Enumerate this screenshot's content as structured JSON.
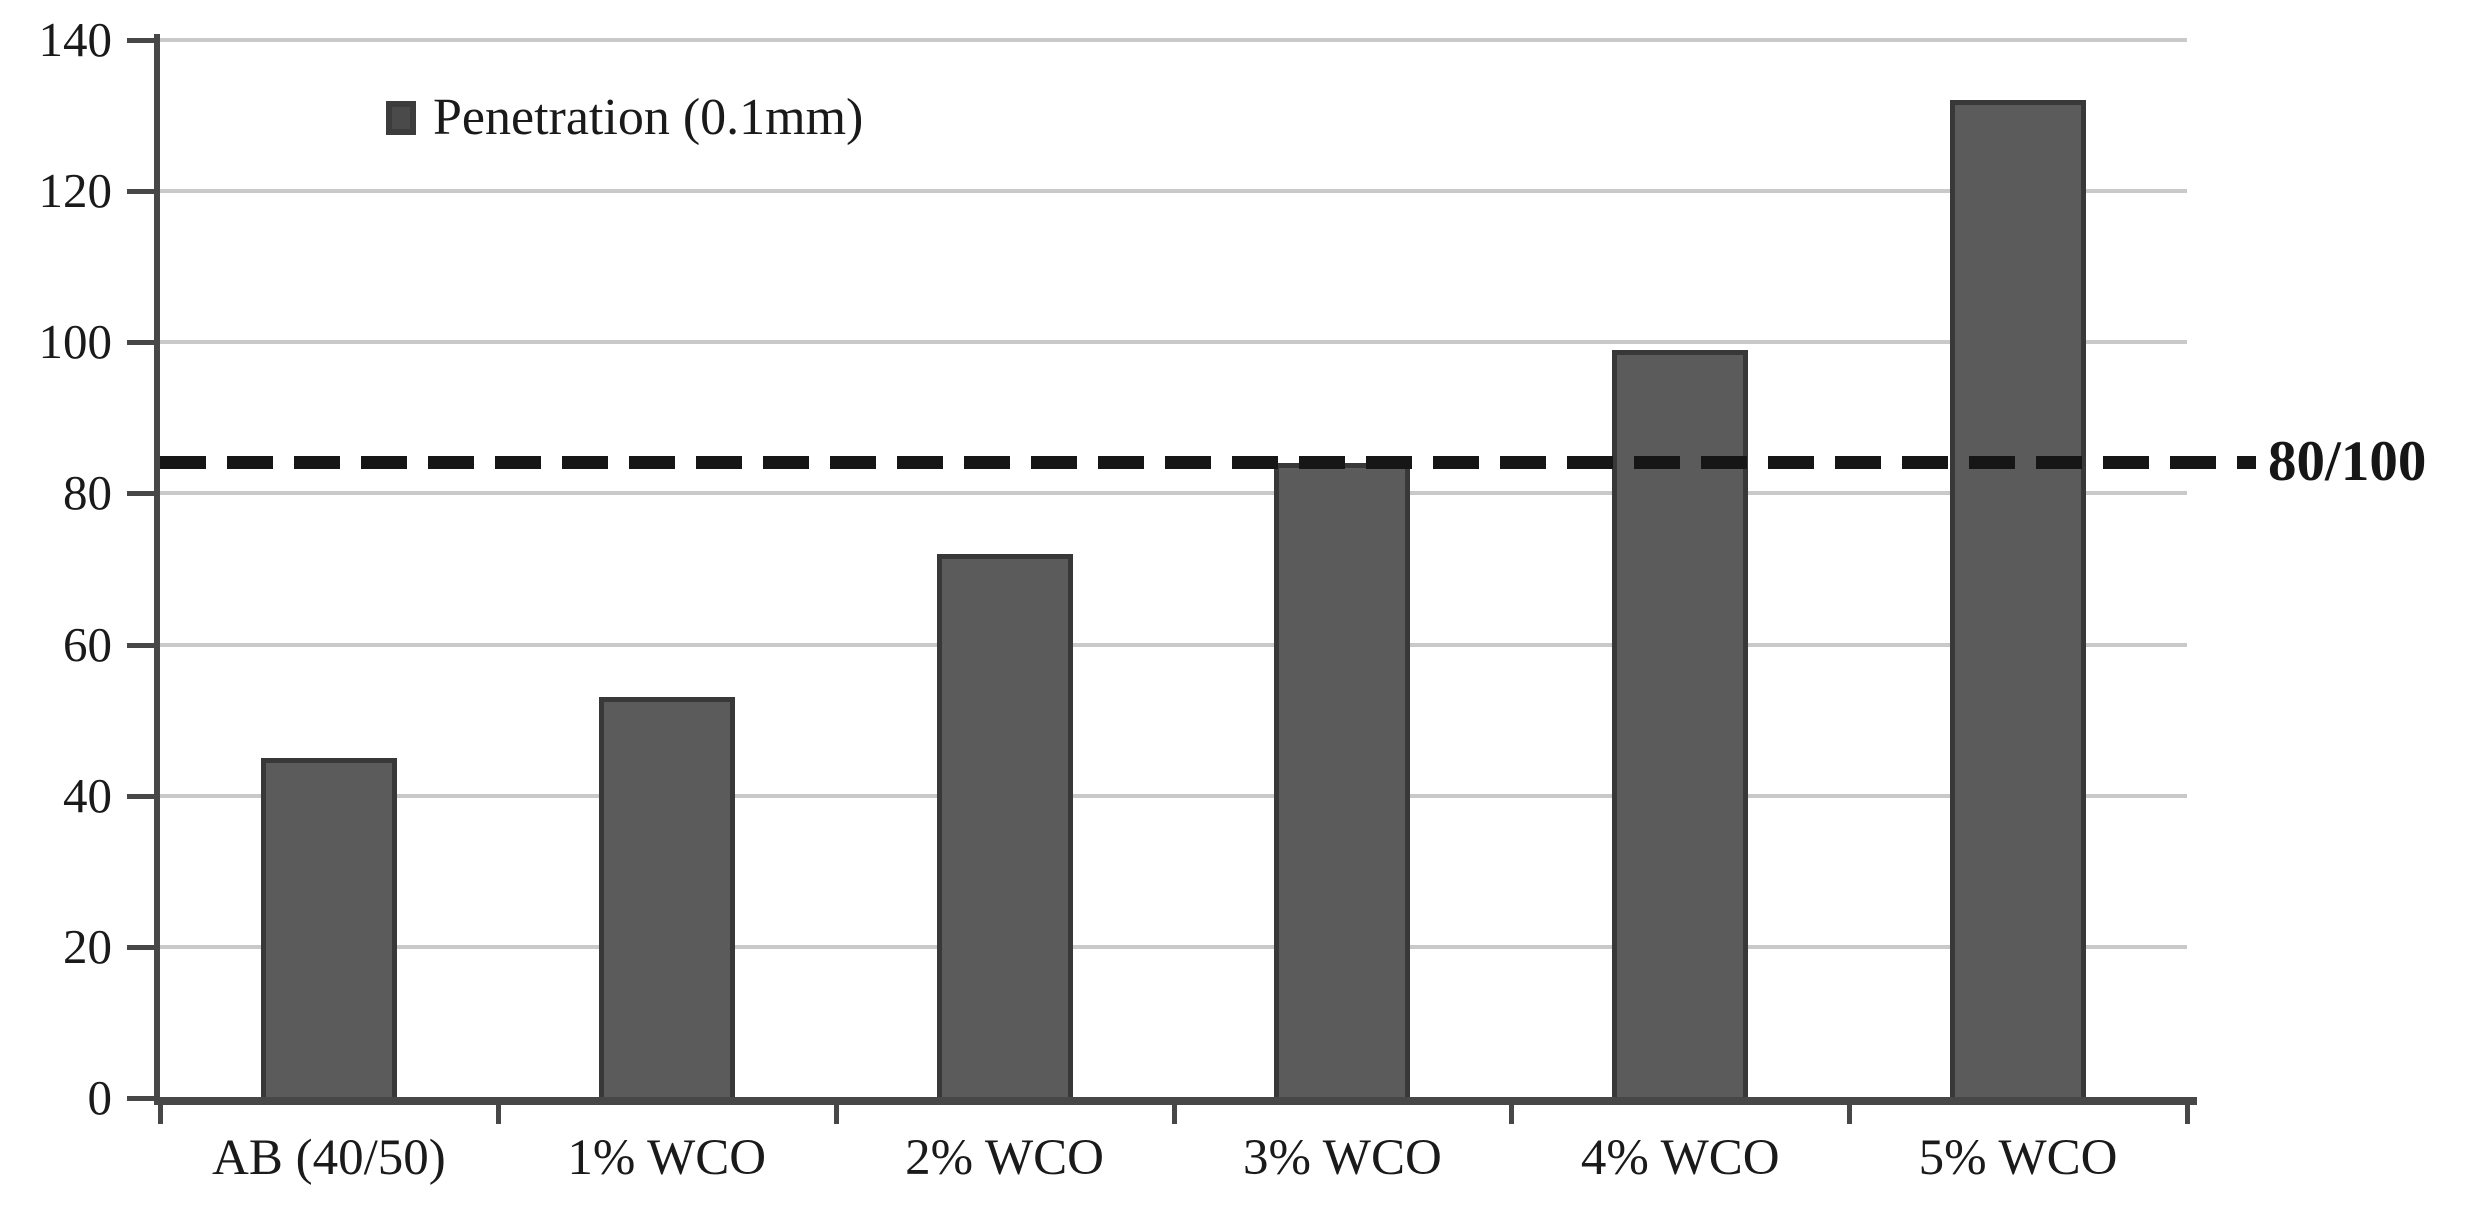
{
  "chart_data": {
    "type": "bar",
    "title": "",
    "categories": [
      "AB (40/50)",
      "1% WCO",
      "2% WCO",
      "3% WCO",
      "4% WCO",
      "5% WCO"
    ],
    "values": [
      45,
      53,
      72,
      84,
      99,
      132
    ],
    "series_name": "Penetration (0.1mm)",
    "xlabel": "",
    "ylabel": "",
    "ylim": [
      0,
      140
    ],
    "yticks": [
      0,
      20,
      40,
      60,
      80,
      100,
      120,
      140
    ],
    "grid": true,
    "legend_position": "inside-top-left",
    "reference_line": {
      "value": 84,
      "label": "80/100",
      "style": "dashed"
    },
    "colors": {
      "bar_fill": "#5b5b5b",
      "bar_border": "#383838",
      "gridline": "#c9c9c9",
      "axis": "#474747",
      "reference_line": "#161616",
      "text": "#1a1a1a",
      "background": "#ffffff"
    }
  }
}
